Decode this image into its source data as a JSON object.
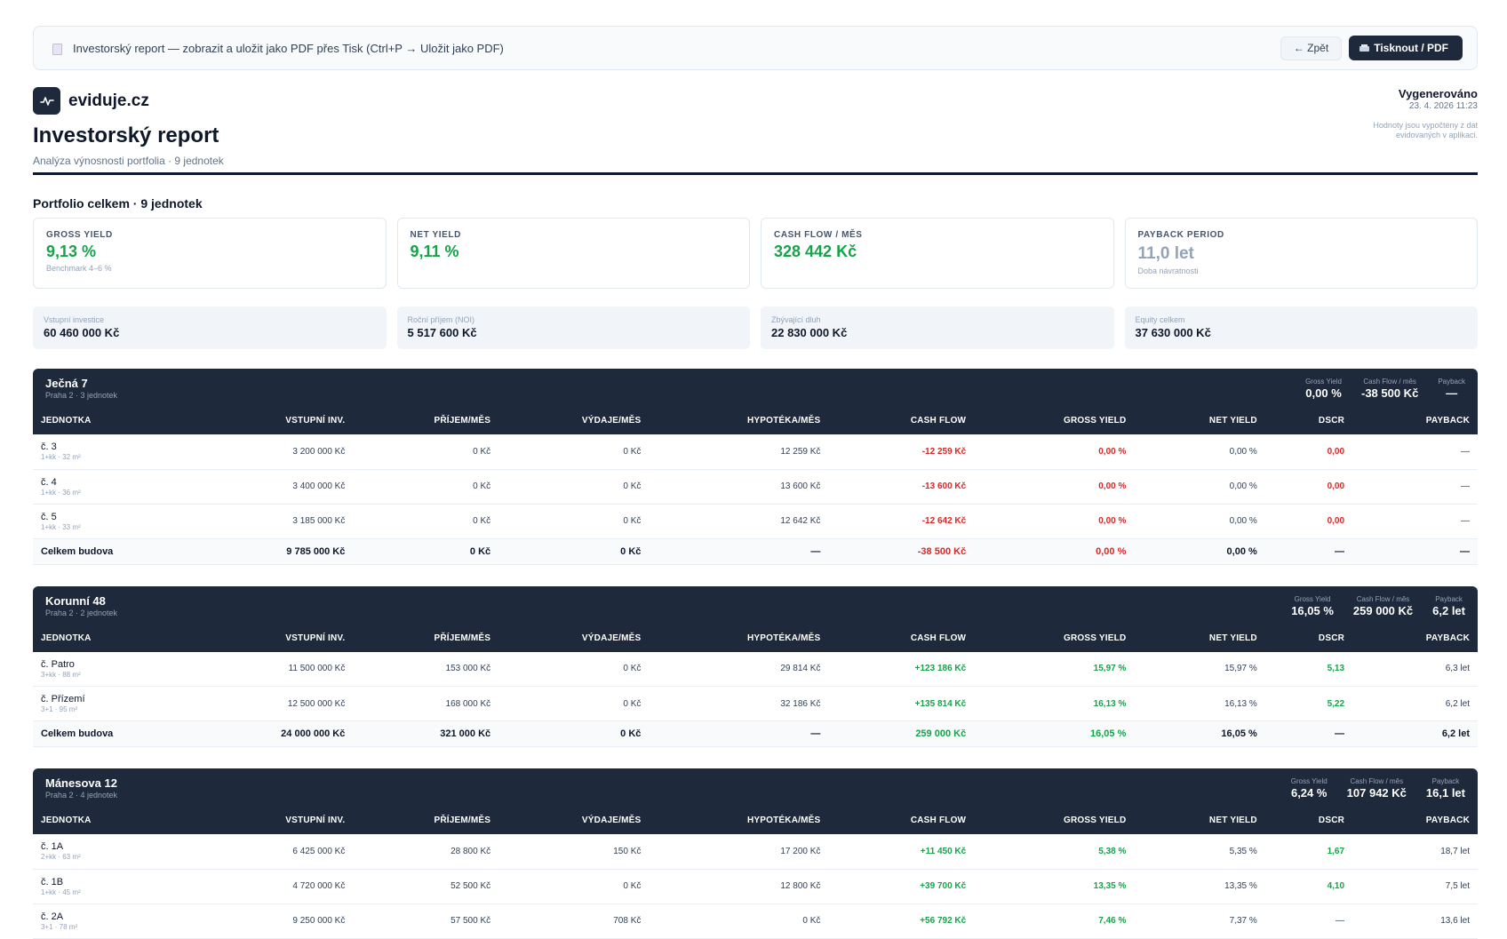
{
  "topbar": {
    "note": "Investorský report — zobrazit a uložit jako PDF přes Tisk (Ctrl+P → Uložit jako PDF)",
    "back_label": "← Zpět",
    "print_label": "Tisknout / PDF"
  },
  "header": {
    "brand": "eviduje.cz",
    "title": "Investorský report",
    "subtitle": "Analýza výnosnosti portfolia · 9 jednotek",
    "generated_label": "Vygenerováno",
    "generated_date": "23. 4. 2026 11:23",
    "note": "Hodnoty jsou vypočteny z dat evidovaných v aplikaci."
  },
  "portfolio": {
    "title": "Portfolio celkem · 9 jednotek",
    "kpis": [
      {
        "label": "GROSS YIELD",
        "value": "9,13 %",
        "sub": "Benchmark 4–6 %"
      },
      {
        "label": "NET YIELD",
        "value": "9,11 %",
        "sub": ""
      },
      {
        "label": "CASH FLOW / MĚS",
        "value": "328 442 Kč",
        "sub": ""
      },
      {
        "label": "PAYBACK PERIOD",
        "value": "11,0 let",
        "sub": "Doba návratnosti"
      }
    ],
    "stats": [
      {
        "label": "Vstupní investice",
        "value": "60 460 000 Kč"
      },
      {
        "label": "Roční příjem (NOI)",
        "value": "5 517 600 Kč"
      },
      {
        "label": "Zbývající dluh",
        "value": "22 830 000 Kč"
      },
      {
        "label": "Equity celkem",
        "value": "37 630 000 Kč"
      }
    ]
  },
  "table_headers": [
    "JEDNOTKA",
    "VSTUPNÍ INV.",
    "PŘÍJEM/MĚS",
    "VÝDAJE/MĚS",
    "HYPOTÉKA/MĚS",
    "CASH FLOW",
    "GROSS YIELD",
    "NET YIELD",
    "DSCR",
    "PAYBACK"
  ],
  "header_stat_labels": {
    "gross": "Gross Yield",
    "cf": "Cash Flow / měs",
    "payback": "Payback"
  },
  "buildings": [
    {
      "name": "Ječná 7",
      "meta": "Praha 2 · 3 jednotek",
      "gross": "0,00 %",
      "cf": "-38 500 Kč",
      "payback": "—",
      "units": [
        {
          "name": "č. 3",
          "meta": "1+kk · 32 m²",
          "inv": "3 200 000 Kč",
          "income": "0 Kč",
          "expenses": "0 Kč",
          "mortgage": "12 259 Kč",
          "cf": "-12 259 Kč",
          "gross": "0,00 %",
          "net": "0,00 %",
          "dscr": "0,00",
          "payback": "—"
        },
        {
          "name": "č. 4",
          "meta": "1+kk · 36 m²",
          "inv": "3 400 000 Kč",
          "income": "0 Kč",
          "expenses": "0 Kč",
          "mortgage": "13 600 Kč",
          "cf": "-13 600 Kč",
          "gross": "0,00 %",
          "net": "0,00 %",
          "dscr": "0,00",
          "payback": "—"
        },
        {
          "name": "č. 5",
          "meta": "1+kk · 33 m²",
          "inv": "3 185 000 Kč",
          "income": "0 Kč",
          "expenses": "0 Kč",
          "mortgage": "12 642 Kč",
          "cf": "-12 642 Kč",
          "gross": "0,00 %",
          "net": "0,00 %",
          "dscr": "0,00",
          "payback": "—"
        }
      ],
      "total": {
        "label": "Celkem budova",
        "inv": "9 785 000 Kč",
        "income": "0 Kč",
        "expenses": "0 Kč",
        "mortgage": "—",
        "cf": "-38 500 Kč",
        "gross": "0,00 %",
        "net": "0,00 %",
        "dscr": "—",
        "payback": "—"
      }
    },
    {
      "name": "Korunní 48",
      "meta": "Praha 2 · 2 jednotek",
      "gross": "16,05 %",
      "cf": "259 000 Kč",
      "payback": "6,2 let",
      "units": [
        {
          "name": "č. Patro",
          "meta": "3+kk · 88 m²",
          "inv": "11 500 000 Kč",
          "income": "153 000 Kč",
          "expenses": "0 Kč",
          "mortgage": "29 814 Kč",
          "cf": "+123 186 Kč",
          "gross": "15,97 %",
          "net": "15,97 %",
          "dscr": "5,13",
          "payback": "6,3 let"
        },
        {
          "name": "č. Přízemí",
          "meta": "3+1 · 95 m²",
          "inv": "12 500 000 Kč",
          "income": "168 000 Kč",
          "expenses": "0 Kč",
          "mortgage": "32 186 Kč",
          "cf": "+135 814 Kč",
          "gross": "16,13 %",
          "net": "16,13 %",
          "dscr": "5,22",
          "payback": "6,2 let"
        }
      ],
      "total": {
        "label": "Celkem budova",
        "inv": "24 000 000 Kč",
        "income": "321 000 Kč",
        "expenses": "0 Kč",
        "mortgage": "—",
        "cf": "259 000 Kč",
        "gross": "16,05 %",
        "net": "16,05 %",
        "dscr": "—",
        "payback": "6,2 let"
      }
    },
    {
      "name": "Mánesova 12",
      "meta": "Praha 2 · 4 jednotek",
      "gross": "6,24 %",
      "cf": "107 942 Kč",
      "payback": "16,1 let",
      "units": [
        {
          "name": "č. 1A",
          "meta": "2+kk · 63 m²",
          "inv": "6 425 000 Kč",
          "income": "28 800 Kč",
          "expenses": "150 Kč",
          "mortgage": "17 200 Kč",
          "cf": "+11 450 Kč",
          "gross": "5,38 %",
          "net": "5,35 %",
          "dscr": "1,67",
          "payback": "18,7 let"
        },
        {
          "name": "č. 1B",
          "meta": "1+kk · 45 m²",
          "inv": "4 720 000 Kč",
          "income": "52 500 Kč",
          "expenses": "0 Kč",
          "mortgage": "12 800 Kč",
          "cf": "+39 700 Kč",
          "gross": "13,35 %",
          "net": "13,35 %",
          "dscr": "4,10",
          "payback": "7,5 let"
        },
        {
          "name": "č. 2A",
          "meta": "3+1 · 78 m²",
          "inv": "9 250 000 Kč",
          "income": "57 500 Kč",
          "expenses": "708 Kč",
          "mortgage": "0 Kč",
          "cf": "+56 792 Kč",
          "gross": "7,46 %",
          "net": "7,37 %",
          "dscr": "—",
          "payback": "13,6 let"
        }
      ],
      "total": null
    }
  ],
  "colors": {
    "navy": "#1e293b",
    "positive": "#16a34a",
    "negative": "#dc2626",
    "muted": "#94a3b8"
  },
  "icons": {
    "brand": "pulse-icon",
    "note": "document-icon",
    "print": "printer-icon"
  }
}
